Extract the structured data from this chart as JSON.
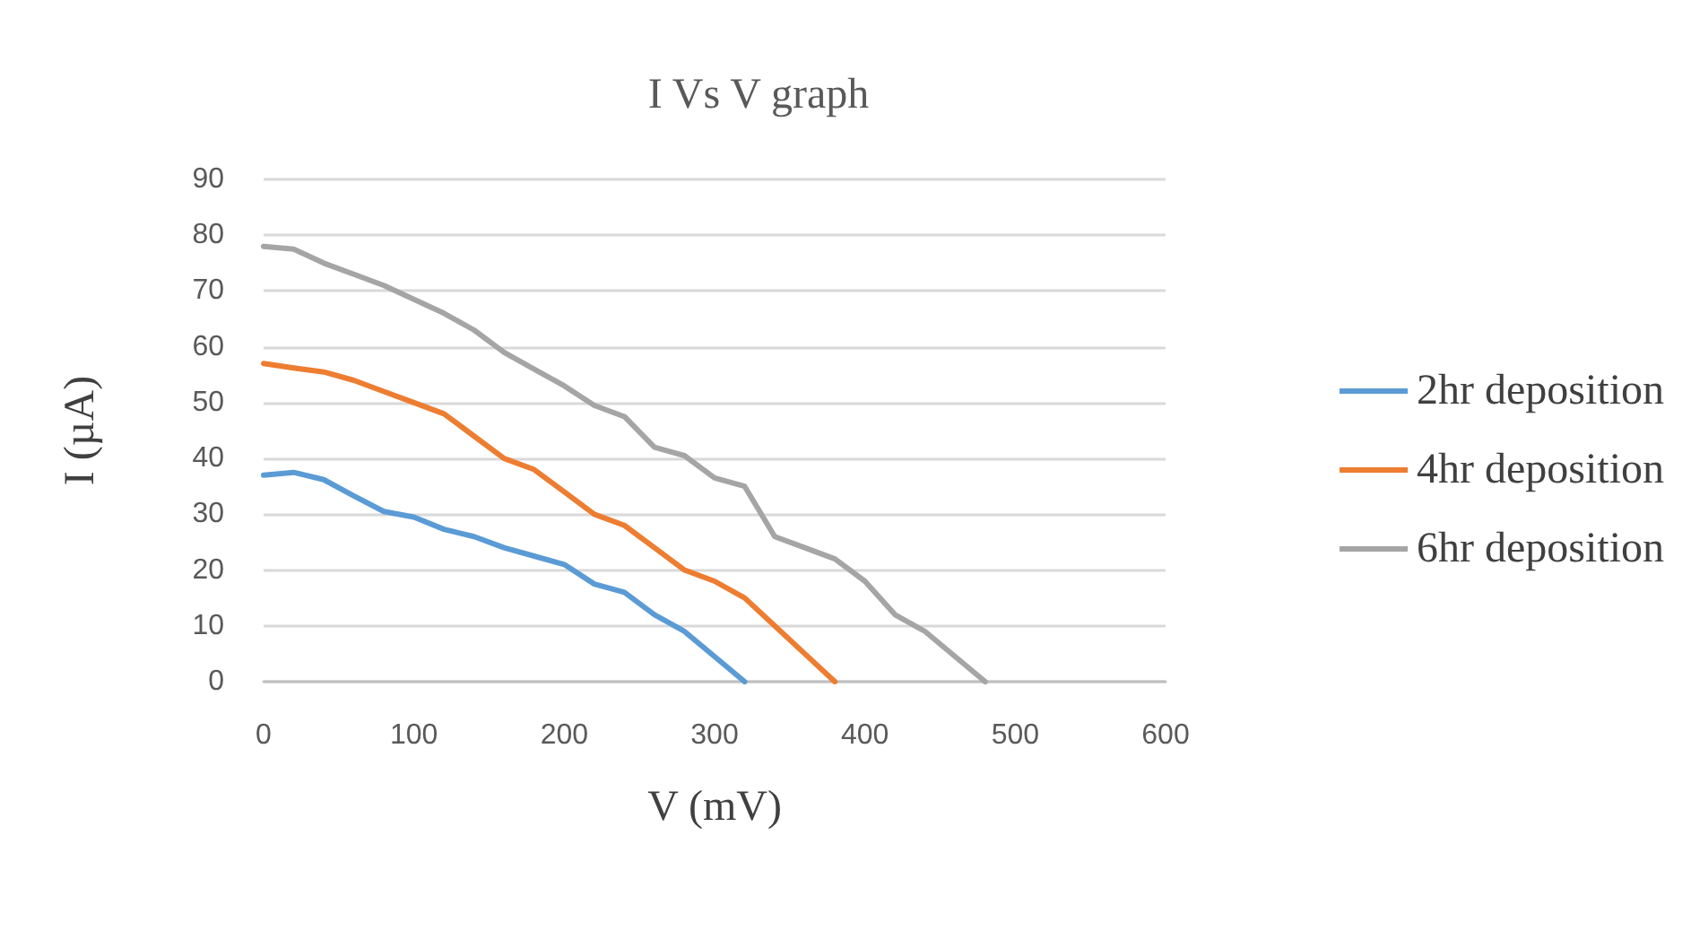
{
  "chart_data": {
    "type": "line",
    "title": "I Vs V graph",
    "xlabel": "V (mV)",
    "ylabel": "I (µA)",
    "x": [
      0,
      20,
      40,
      60,
      80,
      100,
      120,
      140,
      160,
      180,
      200,
      220,
      240,
      260,
      280,
      300,
      320,
      340,
      360,
      380,
      400,
      420,
      440,
      460,
      480
    ],
    "series": [
      {
        "name": "2hr deposition",
        "color": "#5b9bd5",
        "values": [
          37,
          37.5,
          36.2,
          33.3,
          30.5,
          29.5,
          27.3,
          26,
          24,
          22.5,
          21,
          17.5,
          16,
          12,
          9,
          4.5,
          0,
          null,
          null,
          null,
          null,
          null,
          null,
          null,
          null
        ]
      },
      {
        "name": "4hr deposition",
        "color": "#ed7d31",
        "values": [
          57,
          56.2,
          55.5,
          54,
          52,
          50,
          48,
          44,
          40,
          38,
          34,
          30,
          28,
          24,
          20,
          18,
          15,
          10,
          5,
          0,
          null,
          null,
          null,
          null,
          null
        ]
      },
      {
        "name": "6hr deposition",
        "color": "#a5a5a5",
        "values": [
          78,
          77.5,
          75,
          73,
          71,
          68.5,
          66,
          63,
          59,
          56,
          53,
          49.5,
          47.5,
          42,
          40.5,
          36.5,
          35,
          26,
          24,
          22,
          18,
          12,
          9,
          4.5,
          0
        ]
      }
    ],
    "xlim": [
      0,
      600
    ],
    "xticks": [
      0,
      100,
      200,
      300,
      400,
      500,
      600
    ],
    "ylim": [
      0,
      90
    ],
    "yticks": [
      0,
      10,
      20,
      30,
      40,
      50,
      60,
      70,
      80,
      90
    ],
    "grid": "y",
    "legend": "right",
    "marker": "none",
    "line_style": "solid"
  }
}
